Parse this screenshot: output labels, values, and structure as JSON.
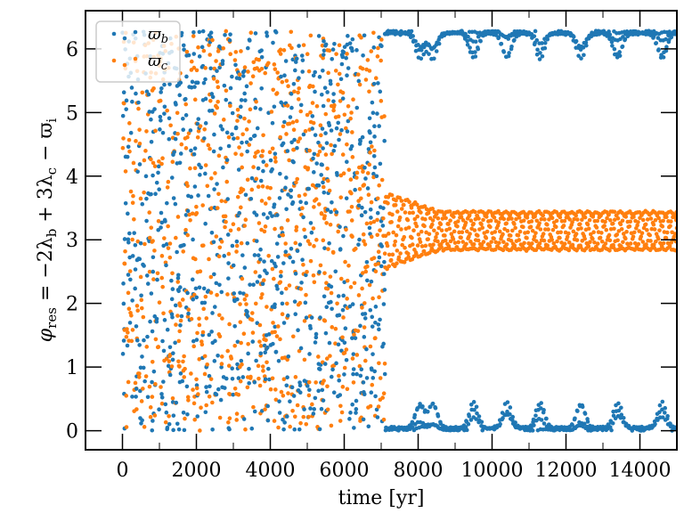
{
  "chart_data": {
    "type": "scatter",
    "title": "",
    "xlabel": "time [yr]",
    "ylabel": "φ_res = −2λ_b + 3λ_c − ϖ_i",
    "ylabel_parts": {
      "phi": "φ",
      "res": "res",
      "eq": " = −2λ",
      "b": "b",
      "plus": " + 3λ",
      "c": "c",
      "minus": " − ϖ",
      "i": "i"
    },
    "xlim": [
      -1000,
      15000
    ],
    "ylim": [
      -0.3,
      6.6
    ],
    "xticks": [
      0,
      2000,
      4000,
      6000,
      8000,
      10000,
      12000,
      14000
    ],
    "xtick_labels": [
      "0",
      "2000",
      "4000",
      "6000",
      "8000",
      "10000",
      "12000",
      "14000"
    ],
    "yticks": [
      0,
      1,
      2,
      3,
      4,
      5,
      6
    ],
    "ytick_labels": [
      "0",
      "1",
      "2",
      "3",
      "4",
      "5",
      "6"
    ],
    "grid": false,
    "legend_position": "top-left",
    "series": [
      {
        "name": "ϖ_b",
        "legend_main": "ϖ",
        "legend_sub": "b",
        "color": "#1f77b4",
        "description_values": {
          "circulating_until_yr": 7100,
          "value_range_circulating": [
            0,
            6.28
          ],
          "after_transition": "libration near 0 and near 2π (wrapping)",
          "libration_bursts_centers": [
            8050,
            8400,
            9500,
            10400,
            11300,
            12400,
            13400,
            14600
          ],
          "libration_max_amplitude": 0.4
        }
      },
      {
        "name": "ϖ_c",
        "legend_main": "ϖ",
        "legend_sub": "c",
        "color": "#ff7f0e",
        "description_values": {
          "circulating_until_yr": 7100,
          "value_range_circulating": [
            0,
            6.28
          ],
          "after_transition": "libration around π",
          "libration_center": 3.14,
          "libration_amplitude_at_7200": 0.6,
          "libration_amplitude_steady": 0.3
        }
      }
    ]
  }
}
